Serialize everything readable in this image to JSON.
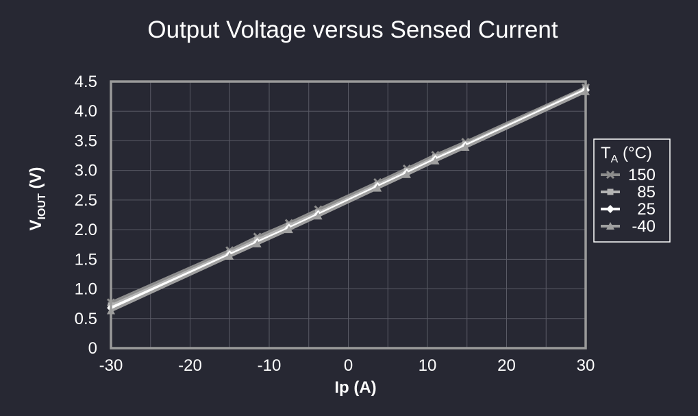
{
  "chart_data": {
    "type": "line",
    "title": "Output Voltage versus Sensed Current",
    "xlabel": "Ip (A)",
    "ylabel": {
      "main": "V",
      "subscript": "IOUT",
      "suffix": " (V)"
    },
    "xlim": [
      -30,
      30
    ],
    "ylim": [
      0,
      4.5
    ],
    "x_ticks": [
      -30,
      -20,
      -10,
      0,
      10,
      20,
      30
    ],
    "x_tick_labels": [
      "-30",
      "-20",
      "-10",
      "0",
      "10",
      "20",
      "30"
    ],
    "y_ticks": [
      0,
      0.5,
      1.0,
      1.5,
      2.0,
      2.5,
      3.0,
      3.5,
      4.0,
      4.5
    ],
    "y_tick_labels": [
      "0",
      "0.5",
      "1.0",
      "1.5",
      "2.0",
      "2.5",
      "3.0",
      "3.5",
      "4.0",
      "4.5"
    ],
    "grid": true,
    "legend": {
      "title_main": "T",
      "title_sub": "A",
      "title_suffix": " (°C)",
      "placement": "right"
    },
    "x": [
      -30,
      -15,
      -11.5,
      -7.5,
      -3.8,
      3.7,
      7.4,
      11,
      14.8,
      30
    ],
    "series": [
      {
        "name": "150",
        "marker": "x",
        "color": "#8c8c8c",
        "values": [
          0.77,
          1.65,
          1.88,
          2.11,
          2.34,
          2.8,
          3.03,
          3.26,
          3.48,
          4.4
        ]
      },
      {
        "name": "85",
        "marker": "square",
        "color": "#b4b4b4",
        "values": [
          0.72,
          1.61,
          1.83,
          2.07,
          2.29,
          2.76,
          2.99,
          3.22,
          3.44,
          4.38
        ]
      },
      {
        "name": "25",
        "marker": "diamond",
        "color": "#ffffff",
        "values": [
          0.68,
          1.58,
          1.79,
          2.03,
          2.26,
          2.73,
          2.96,
          3.19,
          3.42,
          4.36
        ]
      },
      {
        "name": "-40",
        "marker": "triangle",
        "color": "#a0a0a0",
        "values": [
          0.63,
          1.55,
          1.76,
          2.0,
          2.23,
          2.7,
          2.93,
          3.16,
          3.39,
          4.33
        ]
      }
    ]
  }
}
